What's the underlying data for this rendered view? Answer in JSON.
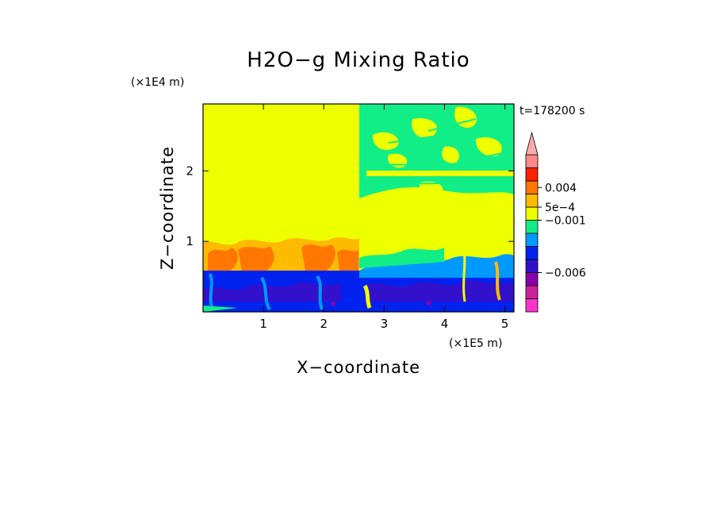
{
  "chart_data": {
    "type": "heatmap",
    "title": "H2O−g Mixing Ratio",
    "xlabel": "X−coordinate",
    "ylabel": "Z−coordinate",
    "x_unit": "(×1E5 m)",
    "y_unit": "(×1E4 m)",
    "time_label": "t=178200 s",
    "xlim": [
      0,
      5.15
    ],
    "ylim": [
      0,
      2.95
    ],
    "x_ticks": [
      1,
      2,
      3,
      4,
      5
    ],
    "y_ticks": [
      1,
      2
    ],
    "colorbar": {
      "colors": [
        "#ff33cc",
        "#cc2299",
        "#8800aa",
        "#3311cc",
        "#0022ee",
        "#0099ff",
        "#11ee88",
        "#eeff00",
        "#ffbb00",
        "#ff7700",
        "#ff2200",
        "#ff8888"
      ],
      "extend_color": "#ffaaaa",
      "labels": [
        {
          "text": "0.004",
          "level": 9.5
        },
        {
          "text": "5e−4",
          "level": 8.0
        },
        {
          "text": "−0.001",
          "level": 7.0
        },
        {
          "text": "−0.006",
          "level": 3.0
        }
      ]
    },
    "regions": [
      {
        "x0": 0,
        "x1": 2.55,
        "z0": 0.62,
        "z1": 2.95,
        "color_index": 7
      },
      {
        "x0": 2.55,
        "x1": 5.15,
        "z0": 0.62,
        "z1": 2.95,
        "color_index": 6
      },
      {
        "x0": 0,
        "x1": 5.15,
        "z0": 0,
        "z1": 0.62,
        "color_index": 4
      }
    ]
  }
}
